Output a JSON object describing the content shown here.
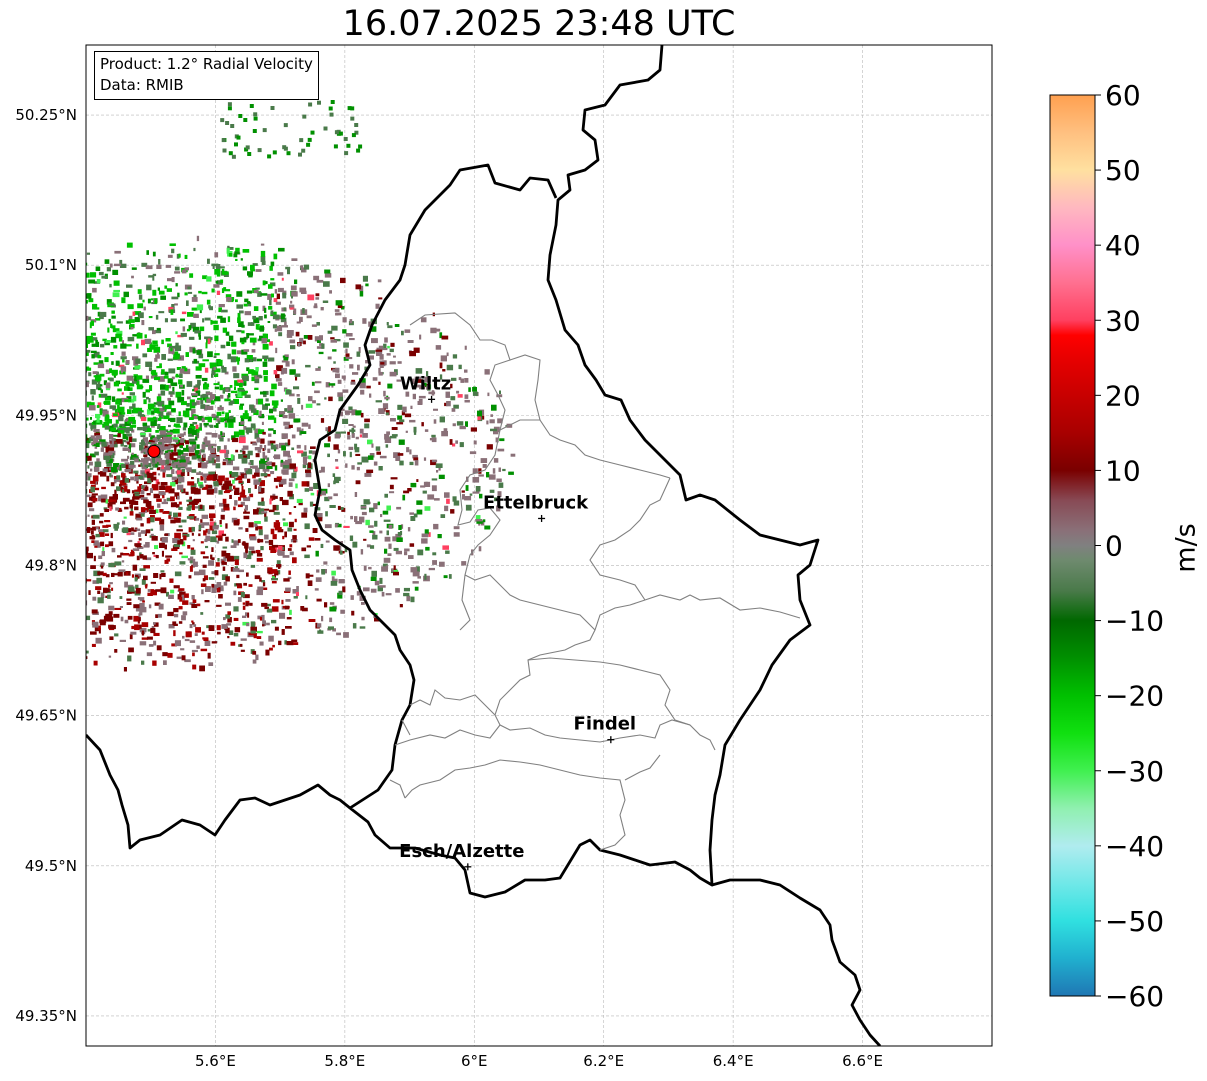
{
  "title": "16.07.2025 23:48 UTC",
  "info": {
    "product": "Product: 1.2° Radial Velocity",
    "data": "Data: RMIB"
  },
  "map": {
    "lon_range": [
      5.4,
      6.8
    ],
    "lat_range": [
      49.32,
      50.32
    ],
    "lat_ticks": [
      {
        "value": 50.25,
        "label": "50.25°N"
      },
      {
        "value": 50.1,
        "label": "50.1°N"
      },
      {
        "value": 49.95,
        "label": "49.95°N"
      },
      {
        "value": 49.8,
        "label": "49.8°N"
      },
      {
        "value": 49.65,
        "label": "49.65°N"
      },
      {
        "value": 49.5,
        "label": "49.5°N"
      },
      {
        "value": 49.35,
        "label": "49.35°N"
      }
    ],
    "lon_ticks": [
      {
        "value": 5.6,
        "label": "5.6°E"
      },
      {
        "value": 5.8,
        "label": "5.8°E"
      },
      {
        "value": 6.0,
        "label": "6°E"
      },
      {
        "value": 6.2,
        "label": "6.2°E"
      },
      {
        "value": 6.4,
        "label": "6.4°E"
      },
      {
        "value": 6.6,
        "label": "6.6°E"
      }
    ],
    "gridlines": true,
    "radar_site": {
      "lon": 5.505,
      "lat": 49.914
    },
    "cities": [
      {
        "name": "Wiltz",
        "lon": 5.934,
        "lat": 49.966
      },
      {
        "name": "Ettelbruck",
        "lon": 6.104,
        "lat": 49.847
      },
      {
        "name": "Findel",
        "lon": 6.211,
        "lat": 49.626
      },
      {
        "name": "Esch/Alzette",
        "lon": 5.99,
        "lat": 49.499
      }
    ]
  },
  "colorbar": {
    "label": "m/s",
    "min": -60,
    "max": 60,
    "ticks": [
      {
        "value": 60,
        "label": "60"
      },
      {
        "value": 50,
        "label": "50"
      },
      {
        "value": 40,
        "label": "40"
      },
      {
        "value": 30,
        "label": "30"
      },
      {
        "value": 20,
        "label": "20"
      },
      {
        "value": 10,
        "label": "10"
      },
      {
        "value": 0,
        "label": "0"
      },
      {
        "value": -10,
        "label": "−10"
      },
      {
        "value": -20,
        "label": "−20"
      },
      {
        "value": -30,
        "label": "−30"
      },
      {
        "value": -40,
        "label": "−40"
      },
      {
        "value": -50,
        "label": "−50"
      },
      {
        "value": -60,
        "label": "−60"
      }
    ],
    "stops": [
      {
        "v": -60,
        "c": "#1f77b4"
      },
      {
        "v": -55,
        "c": "#20b0cf"
      },
      {
        "v": -50,
        "c": "#30e0e0"
      },
      {
        "v": -45,
        "c": "#70e8e8"
      },
      {
        "v": -40,
        "c": "#b0ecef"
      },
      {
        "v": -35,
        "c": "#90f0b0"
      },
      {
        "v": -30,
        "c": "#40f050"
      },
      {
        "v": -25,
        "c": "#10e010"
      },
      {
        "v": -20,
        "c": "#00c000"
      },
      {
        "v": -15,
        "c": "#009000"
      },
      {
        "v": -10,
        "c": "#006800"
      },
      {
        "v": -6,
        "c": "#4a7a4a"
      },
      {
        "v": -2,
        "c": "#6e8a6e"
      },
      {
        "v": 0,
        "c": "#808080"
      },
      {
        "v": 2,
        "c": "#8a7078"
      },
      {
        "v": 6,
        "c": "#884a55"
      },
      {
        "v": 10,
        "c": "#7a0000"
      },
      {
        "v": 15,
        "c": "#a80000"
      },
      {
        "v": 20,
        "c": "#c80000"
      },
      {
        "v": 25,
        "c": "#e80000"
      },
      {
        "v": 28,
        "c": "#ff0000"
      },
      {
        "v": 30,
        "c": "#ff4060"
      },
      {
        "v": 35,
        "c": "#ff7090"
      },
      {
        "v": 40,
        "c": "#ff90c8"
      },
      {
        "v": 45,
        "c": "#ffb8c0"
      },
      {
        "v": 50,
        "c": "#ffe0a0"
      },
      {
        "v": 55,
        "c": "#ffc080"
      },
      {
        "v": 60,
        "c": "#ffa050"
      }
    ]
  }
}
